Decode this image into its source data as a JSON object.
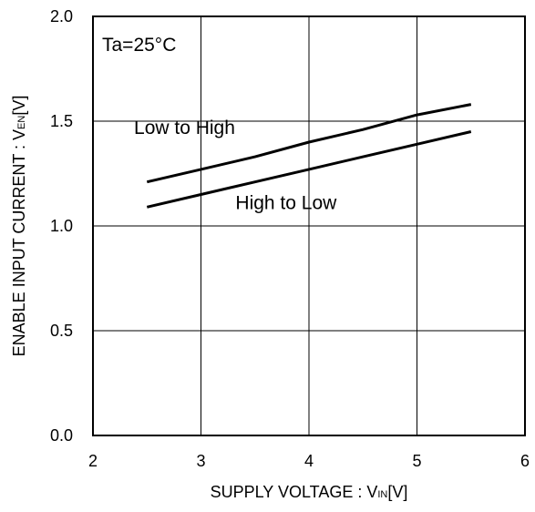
{
  "chart_data": {
    "type": "line",
    "title": "",
    "xlabel": {
      "main": "SUPPLY VOLTAGE : V",
      "sub": "IN",
      "unit": "[V]"
    },
    "ylabel": {
      "main": "ENABLE INPUT CURRENT : V",
      "sub": "EN",
      "unit": "[V]"
    },
    "xlim": [
      2,
      6
    ],
    "ylim": [
      0.0,
      2.0
    ],
    "x_ticks": [
      "2",
      "3",
      "4",
      "5",
      "6"
    ],
    "y_ticks": [
      "0.0",
      "0.5",
      "1.0",
      "1.5",
      "2.0"
    ],
    "grid": true,
    "condition": "Ta=25°C",
    "series": [
      {
        "name": "Low to High",
        "x": [
          2.5,
          3.0,
          3.5,
          4.0,
          4.5,
          5.0,
          5.5
        ],
        "y": [
          1.21,
          1.27,
          1.33,
          1.4,
          1.46,
          1.53,
          1.58
        ]
      },
      {
        "name": "High to Low",
        "x": [
          2.5,
          3.0,
          3.5,
          4.0,
          4.5,
          5.0,
          5.5
        ],
        "y": [
          1.09,
          1.15,
          1.21,
          1.27,
          1.33,
          1.39,
          1.45
        ]
      }
    ],
    "series_label_positions": [
      {
        "x": 2.38,
        "y": 1.44
      },
      {
        "x": 3.32,
        "y": 1.08
      }
    ],
    "colors": {
      "line": "#000000",
      "grid": "#000000",
      "background": "#ffffff"
    }
  }
}
